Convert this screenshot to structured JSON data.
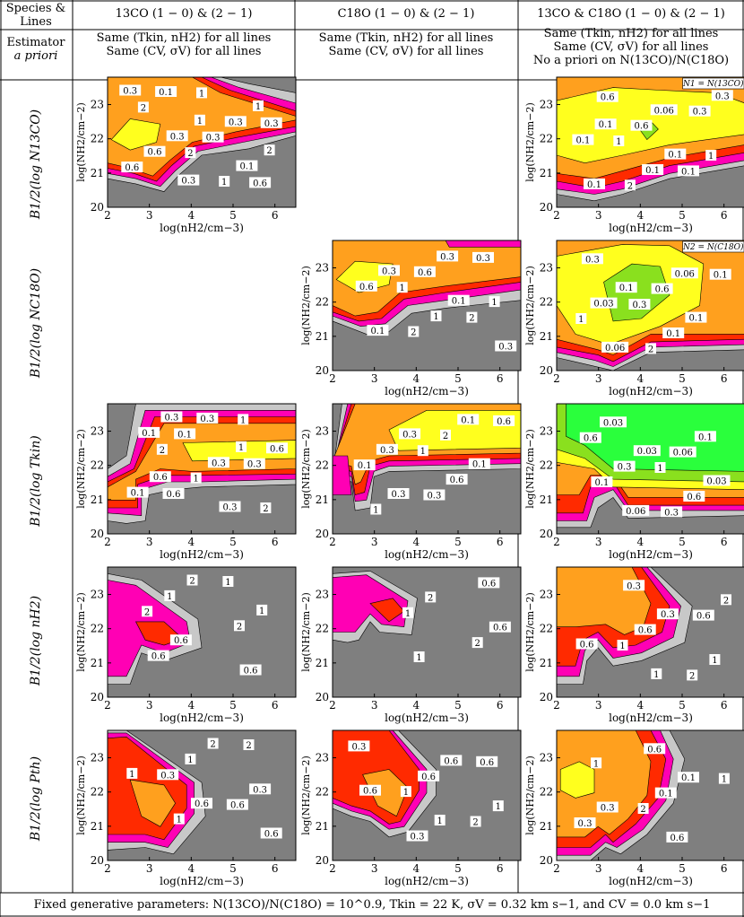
{
  "headers": {
    "corner_top": "Species & Lines",
    "corner_bottom": [
      "Estimator",
      "a priori"
    ],
    "columns": [
      {
        "title": "13CO  (1 − 0) & (2 − 1)",
        "lines": [
          "Same (Tkin, nH2) for all lines",
          "Same (CV, σV) for all lines"
        ]
      },
      {
        "title": "C18O  (1 − 0) & (2 − 1)",
        "lines": [
          "Same (Tkin, nH2) for all lines",
          "Same (CV, σV) for all lines"
        ]
      },
      {
        "title": "13CO & C18O  (1 − 0) & (2 − 1)",
        "lines": [
          "Same (Tkin, nH2) for all lines",
          "Same (CV, σV) for all lines",
          "No a priori on N(13CO)/N(C18O)"
        ]
      }
    ]
  },
  "rows": [
    {
      "label": "B1/2(log N13CO)"
    },
    {
      "label": "B1/2(log NC18O)"
    },
    {
      "label": "B1/2(log Tkin)"
    },
    {
      "label": "B1/2(log nH2)"
    },
    {
      "label": "B1/2(log Pth)"
    }
  ],
  "footer": "Fixed generative parameters: N(13CO)/N(C18O) = 10^0.9, Tkin = 22 K, σV = 0.32 km s−1, and CV = 0.0 km s−1",
  "chart_data": {
    "type": "contour-grid",
    "xlabel": "log(nH2/cm−3)",
    "ylabel": "log(NH2/cm−2)",
    "xticks": [
      2,
      3,
      4,
      5,
      6
    ],
    "yticks": [
      20,
      21,
      22,
      23
    ],
    "xlim": [
      2,
      6.5
    ],
    "ylim": [
      20,
      23.8
    ],
    "contour_levels": [
      0.03,
      0.06,
      0.1,
      0.3,
      0.6,
      1,
      2
    ],
    "colors": {
      "gt2": "#7f7f7f",
      "1-2": "#c8c8c8",
      "0.6-1": "#ff00b4",
      "0.3-0.6": "#ff2a00",
      "0.1-0.3": "#ffa01e",
      "0.06-0.1": "#ffff1e",
      "0.03-0.06": "#8ae01e",
      "lt0.03": "#2aff3c"
    },
    "panels": [
      {
        "row": 0,
        "col": 0,
        "labels": [
          "0.3",
          "1",
          "2",
          "0.3",
          "1",
          "0.3",
          "0.1",
          "0.1",
          "0.3",
          "0.6",
          "1",
          "2",
          "0.3",
          "0.6",
          "1",
          "0.3",
          "2",
          "0.6"
        ]
      },
      {
        "row": 0,
        "col": 2,
        "annotation": "N1 = N(13CO)",
        "labels": [
          "0.1",
          "0.1",
          "0.1",
          "0.06",
          "0.1",
          "0.1",
          "0.3",
          "0.6",
          "1",
          "2",
          "0.3",
          "1",
          "0.1",
          "0.6"
        ]
      },
      {
        "row": 1,
        "col": 1,
        "labels": [
          "0.3",
          "0.1",
          "0.1",
          "0.3",
          "0.6",
          "1",
          "0.3",
          "0.6",
          "1",
          "2",
          "0.3",
          "1",
          "2"
        ]
      },
      {
        "row": 1,
        "col": 2,
        "annotation": "N2 = N(C18O)",
        "labels": [
          "0.1",
          "0.1",
          "0.06",
          "0.06",
          "0.03",
          "0.1",
          "0.3",
          "0.6",
          "1",
          "2",
          "0.1",
          "0.3"
        ]
      },
      {
        "row": 2,
        "col": 0,
        "labels": [
          "0.3",
          "1",
          "0.6",
          "0.3",
          "0.1",
          "0.3",
          "0.1",
          "0.3",
          "0.6",
          "1",
          "2",
          "0.1",
          "0.3",
          "0.6",
          "1",
          "2"
        ]
      },
      {
        "row": 2,
        "col": 1,
        "labels": [
          "0.3",
          "0.1",
          "0.3",
          "0.1",
          "0.3",
          "0.6",
          "1",
          "2",
          "0.1",
          "0.3",
          "0.6",
          "1"
        ]
      },
      {
        "row": 2,
        "col": 2,
        "labels": [
          "0.03",
          "0.03",
          "0.06",
          "0.1",
          "0.3",
          "0.6",
          "0.03",
          "0.06",
          "0.1",
          "0.3",
          "0.6",
          "1"
        ]
      },
      {
        "row": 3,
        "col": 0,
        "labels": [
          "2",
          "1",
          "0.6",
          "0.6",
          "1",
          "2",
          "0.6",
          "1",
          "2"
        ]
      },
      {
        "row": 3,
        "col": 1,
        "labels": [
          "2",
          "0.6",
          "1",
          "0.6",
          "1",
          "2"
        ]
      },
      {
        "row": 3,
        "col": 2,
        "labels": [
          "0.3",
          "0.6",
          "1",
          "2",
          "0.6",
          "1",
          "0.3",
          "0.6",
          "1",
          "2"
        ]
      },
      {
        "row": 4,
        "col": 0,
        "labels": [
          "2",
          "1",
          "0.6",
          "0.6",
          "1",
          "0.3",
          "1",
          "2",
          "0.3",
          "0.6"
        ]
      },
      {
        "row": 4,
        "col": 1,
        "labels": [
          "0.6",
          "0.6",
          "1",
          "0.3",
          "0.6",
          "1",
          "0.3",
          "0.6",
          "1",
          "2"
        ]
      },
      {
        "row": 4,
        "col": 2,
        "labels": [
          "0.1",
          "0.3",
          "0.6",
          "1",
          "0.1",
          "0.3",
          "0.6",
          "1",
          "2"
        ]
      }
    ]
  }
}
